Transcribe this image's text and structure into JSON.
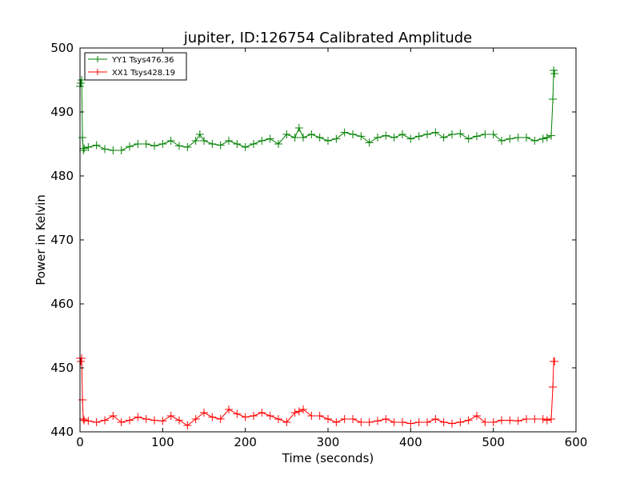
{
  "chart_data": {
    "type": "line",
    "title": "jupiter, ID:126754 Calibrated Amplitude",
    "xlabel": "Time (seconds)",
    "ylabel": "Power in Kelvin",
    "xlim": [
      0,
      600
    ],
    "ylim": [
      440,
      500
    ],
    "xticks": [
      "0",
      "100",
      "200",
      "300",
      "400",
      "500",
      "600"
    ],
    "yticks": [
      "440",
      "450",
      "460",
      "470",
      "480",
      "490",
      "500"
    ],
    "grid": false,
    "legend": "top-left",
    "series": [
      {
        "name": "YY1 Tsys476.36",
        "color": "#008000",
        "marker": "plus",
        "x": [
          0,
          1,
          2,
          3,
          4,
          5,
          10,
          20,
          30,
          40,
          50,
          60,
          70,
          80,
          90,
          100,
          110,
          120,
          130,
          140,
          145,
          150,
          160,
          170,
          180,
          190,
          200,
          210,
          220,
          230,
          240,
          250,
          260,
          265,
          270,
          280,
          290,
          300,
          310,
          320,
          330,
          340,
          350,
          360,
          370,
          380,
          390,
          400,
          410,
          420,
          430,
          440,
          450,
          460,
          470,
          480,
          490,
          500,
          510,
          520,
          530,
          540,
          550,
          560,
          565,
          570,
          572,
          573,
          574
        ],
        "y": [
          494,
          494.5,
          495,
          486,
          484,
          484.3,
          484.5,
          484.8,
          484.2,
          484,
          484,
          484.6,
          485,
          485,
          484.7,
          485,
          485.5,
          484.7,
          484.5,
          485.5,
          486.5,
          485.5,
          485,
          484.8,
          485.5,
          485,
          484.5,
          485,
          485.5,
          485.8,
          485,
          486.5,
          486,
          487.5,
          486,
          486.5,
          486,
          485.5,
          485.8,
          486.8,
          486.5,
          486.2,
          485.2,
          486,
          486.3,
          486,
          486.5,
          485.8,
          486.2,
          486.5,
          486.8,
          486,
          486.5,
          486.6,
          485.8,
          486.2,
          486.5,
          486.5,
          485.5,
          485.8,
          486,
          486,
          485.5,
          485.8,
          486,
          486.3,
          492,
          496.5,
          496
        ]
      },
      {
        "name": "XX1 Tsys428.19",
        "color": "#ff0000",
        "marker": "plus",
        "x": [
          0,
          1,
          2,
          3,
          4,
          5,
          10,
          20,
          30,
          40,
          50,
          60,
          70,
          80,
          90,
          100,
          110,
          120,
          130,
          140,
          150,
          160,
          170,
          180,
          190,
          200,
          210,
          220,
          230,
          240,
          250,
          260,
          265,
          270,
          280,
          290,
          300,
          310,
          320,
          330,
          340,
          350,
          360,
          370,
          380,
          390,
          400,
          410,
          420,
          430,
          440,
          450,
          460,
          470,
          480,
          490,
          500,
          510,
          520,
          530,
          540,
          550,
          560,
          565,
          570,
          572,
          573,
          574
        ],
        "y": [
          451.5,
          451,
          451.5,
          445,
          442,
          441.8,
          441.7,
          441.5,
          441.8,
          442.5,
          441.5,
          441.8,
          442.3,
          442,
          441.8,
          441.7,
          442.5,
          441.8,
          441,
          442,
          443,
          442.3,
          442,
          443.5,
          442.8,
          442.3,
          442.5,
          443,
          442.5,
          442,
          441.5,
          443,
          443.2,
          443.5,
          442.5,
          442.5,
          442,
          441.5,
          442,
          442,
          441.5,
          441.5,
          441.7,
          442,
          441.5,
          441.5,
          441.3,
          441.5,
          441.5,
          442,
          441.5,
          441.3,
          441.5,
          441.8,
          442.5,
          441.5,
          441.5,
          441.8,
          441.8,
          441.7,
          442,
          442,
          442,
          441.8,
          442,
          447,
          451,
          451
        ]
      }
    ]
  }
}
